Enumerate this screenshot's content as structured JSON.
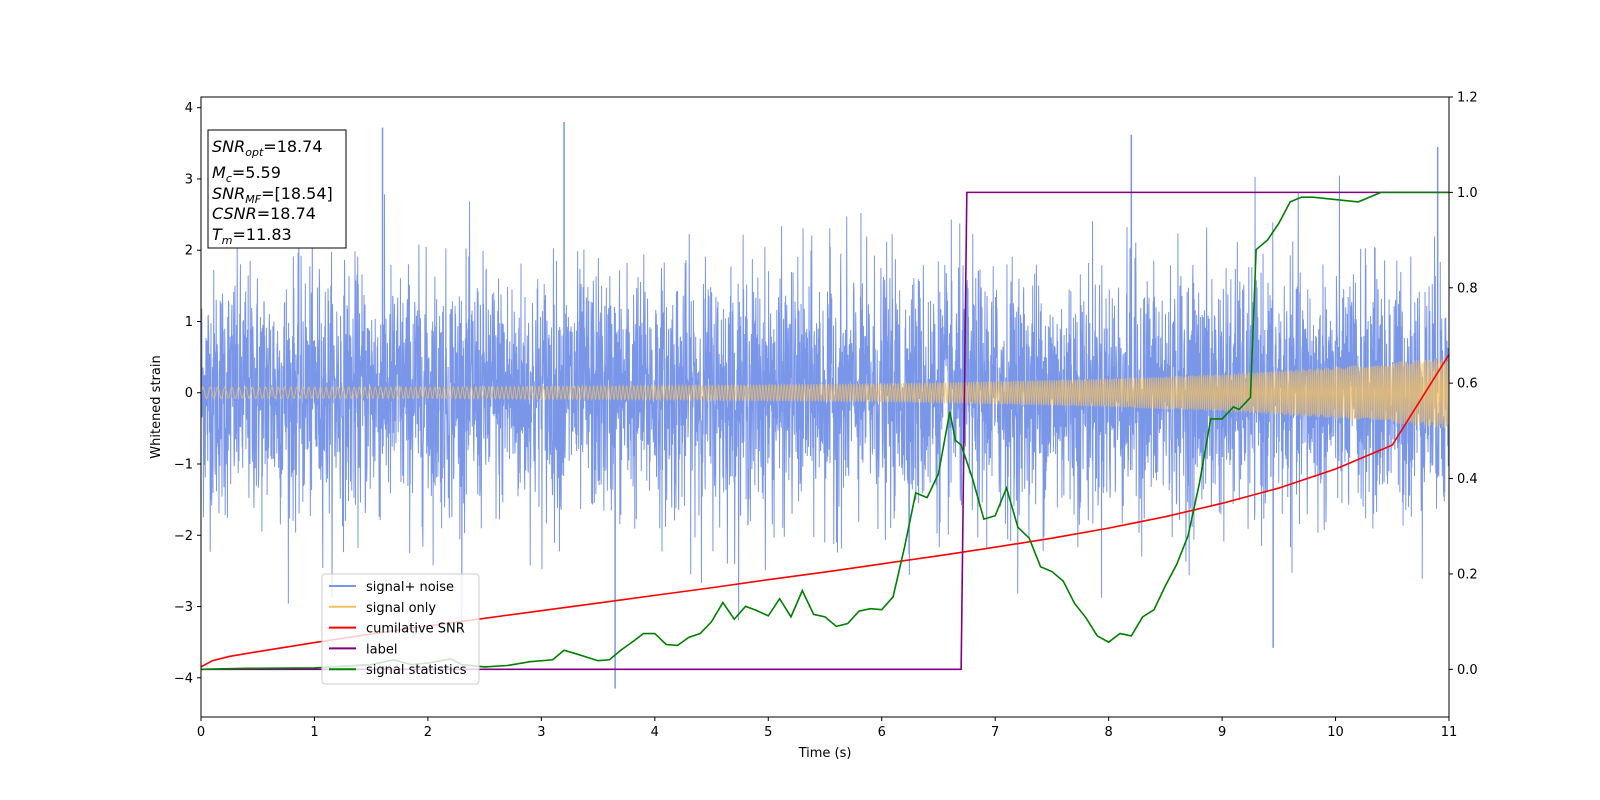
{
  "chart_data": {
    "type": "line",
    "xlabel": "Time (s)",
    "ylabel": "Whitened strain",
    "xlim": [
      0,
      11
    ],
    "ylim": [
      -4.55,
      4.15
    ],
    "y2lim": [
      -0.1,
      1.2
    ],
    "xticks": [
      0,
      1,
      2,
      3,
      4,
      5,
      6,
      7,
      8,
      9,
      10,
      11
    ],
    "yticks": [
      -4,
      -3,
      -2,
      -1,
      0,
      1,
      2,
      3,
      4
    ],
    "y2ticks": [
      0.0,
      0.2,
      0.4,
      0.6,
      0.8,
      1.0,
      1.2
    ],
    "xtick_labels": [
      "0",
      "1",
      "2",
      "3",
      "4",
      "5",
      "6",
      "7",
      "8",
      "9",
      "10",
      "11"
    ],
    "ytick_labels": [
      "−4",
      "−3",
      "−2",
      "−1",
      "0",
      "1",
      "2",
      "3",
      "4"
    ],
    "y2tick_labels": [
      "0.0",
      "0.2",
      "0.4",
      "0.6",
      "0.8",
      "1.0",
      "1.2"
    ],
    "grid": false,
    "legend_position": "lower-left",
    "info_box": {
      "position": "top-left",
      "lines": [
        {
          "italic": "SNR",
          "sub": "opt",
          "rest": "=18.74"
        },
        {
          "italic": "M",
          "sub": "c",
          "rest": "=5.59"
        },
        {
          "italic": "SNR",
          "sub": "MF",
          "rest": "=[18.54]"
        },
        {
          "italic": "CSNR",
          "sub": "",
          "rest": "=18.74"
        },
        {
          "italic": "T",
          "sub": "m",
          "rest": "=11.83"
        }
      ]
    },
    "series": [
      {
        "name": "signal+ noise",
        "axis": "left",
        "color": "#7a96e8",
        "style": "noise band",
        "envelope_min": -4.15,
        "envelope_max": 3.78,
        "notable_peaks": [
          [
            1.6,
            3.72
          ],
          [
            3.2,
            3.8
          ],
          [
            3.65,
            -4.15
          ],
          [
            8.2,
            3.62
          ],
          [
            9.45,
            -3.58
          ],
          [
            10.9,
            3.45
          ]
        ]
      },
      {
        "name": "signal only",
        "axis": "left",
        "color": "#f5c060",
        "style": "chirp",
        "amplitude": [
          [
            0,
            0.08
          ],
          [
            2,
            0.08
          ],
          [
            4,
            0.1
          ],
          [
            6,
            0.13
          ],
          [
            7,
            0.16
          ],
          [
            8,
            0.2
          ],
          [
            9,
            0.26
          ],
          [
            10,
            0.36
          ],
          [
            11,
            0.5
          ]
        ]
      },
      {
        "name": "cumilative SNR",
        "axis": "right",
        "color": "#ff0000",
        "x": [
          0,
          0.1,
          0.25,
          0.5,
          1,
          1.5,
          2,
          2.5,
          3,
          3.5,
          4,
          4.5,
          5,
          5.5,
          6,
          6.5,
          7,
          7.5,
          8,
          8.5,
          9,
          9.5,
          10,
          10.5,
          11
        ],
        "y": [
          0.005,
          0.018,
          0.027,
          0.037,
          0.056,
          0.074,
          0.091,
          0.107,
          0.123,
          0.139,
          0.155,
          0.171,
          0.188,
          0.204,
          0.221,
          0.238,
          0.256,
          0.275,
          0.296,
          0.32,
          0.348,
          0.38,
          0.42,
          0.47,
          0.66
        ]
      },
      {
        "name": "label",
        "axis": "right",
        "color": "#800080",
        "x": [
          0,
          6.7,
          6.75,
          11
        ],
        "y": [
          0.0,
          0.0,
          1.0,
          1.0
        ]
      },
      {
        "name": "signal statistics",
        "axis": "right",
        "color": "#008000",
        "x": [
          0,
          0.4,
          1,
          1.3,
          1.5,
          1.7,
          1.85,
          2,
          2.2,
          2.3,
          2.5,
          2.7,
          2.9,
          3.1,
          3.2,
          3.3,
          3.5,
          3.6,
          3.7,
          3.8,
          3.9,
          4.0,
          4.1,
          4.2,
          4.3,
          4.4,
          4.5,
          4.6,
          4.7,
          4.8,
          4.9,
          5.0,
          5.1,
          5.2,
          5.3,
          5.4,
          5.5,
          5.6,
          5.7,
          5.8,
          5.9,
          6.0,
          6.1,
          6.2,
          6.3,
          6.4,
          6.5,
          6.6,
          6.65,
          6.7,
          6.8,
          6.9,
          7.0,
          7.1,
          7.2,
          7.3,
          7.4,
          7.5,
          7.6,
          7.7,
          7.8,
          7.9,
          8.0,
          8.1,
          8.2,
          8.3,
          8.4,
          8.5,
          8.6,
          8.7,
          8.8,
          8.9,
          9.0,
          9.1,
          9.15,
          9.25,
          9.3,
          9.4,
          9.5,
          9.6,
          9.7,
          9.8,
          10.0,
          10.2,
          10.4,
          10.6,
          11.0
        ],
        "y": [
          0.0,
          0.002,
          0.003,
          0.007,
          0.01,
          0.02,
          0.01,
          0.013,
          0.022,
          0.01,
          0.005,
          0.008,
          0.016,
          0.02,
          0.04,
          0.033,
          0.018,
          0.02,
          0.04,
          0.057,
          0.075,
          0.075,
          0.052,
          0.05,
          0.067,
          0.075,
          0.1,
          0.14,
          0.105,
          0.132,
          0.123,
          0.112,
          0.148,
          0.11,
          0.165,
          0.115,
          0.11,
          0.09,
          0.096,
          0.122,
          0.127,
          0.125,
          0.152,
          0.255,
          0.37,
          0.36,
          0.41,
          0.54,
          0.48,
          0.47,
          0.4,
          0.315,
          0.322,
          0.38,
          0.298,
          0.275,
          0.215,
          0.205,
          0.185,
          0.138,
          0.108,
          0.07,
          0.057,
          0.075,
          0.07,
          0.11,
          0.125,
          0.175,
          0.22,
          0.28,
          0.39,
          0.525,
          0.525,
          0.55,
          0.545,
          0.57,
          0.88,
          0.9,
          0.935,
          0.98,
          0.99,
          0.99,
          0.985,
          0.98,
          1.0,
          1.0,
          1.0
        ]
      }
    ]
  }
}
